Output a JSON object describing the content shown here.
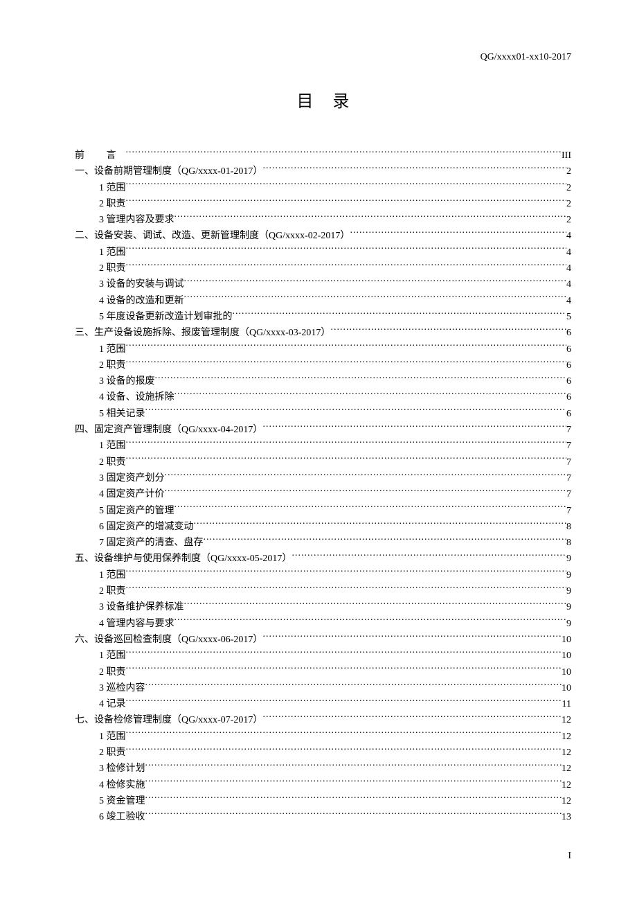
{
  "header_code": "QG/xxxx01-xx10-2017",
  "title": "目录",
  "page_number": "I",
  "toc": [
    {
      "level": 0,
      "label": "前  言",
      "page": "III",
      "preface": true
    },
    {
      "level": 1,
      "label": "一、设备前期管理制度（QG/xxxx-01-2017）",
      "page": "2"
    },
    {
      "level": 2,
      "label": "1 范围",
      "page": "2"
    },
    {
      "level": 2,
      "label": "2 职责",
      "page": "2"
    },
    {
      "level": 2,
      "label": "3 管理内容及要求",
      "page": "2"
    },
    {
      "level": 1,
      "label": "二、设备安装、调试、改造、更新管理制度（QG/xxxx-02-2017）",
      "page": "4"
    },
    {
      "level": 2,
      "label": "1 范围",
      "page": "4"
    },
    {
      "level": 2,
      "label": "2 职责",
      "page": "4"
    },
    {
      "level": 2,
      "label": "3 设备的安装与调试",
      "page": "4"
    },
    {
      "level": 2,
      "label": "4 设备的改造和更新",
      "page": "4"
    },
    {
      "level": 2,
      "label": "5 年度设备更新改造计划审批的",
      "page": "5"
    },
    {
      "level": 1,
      "label": "三、生产设备设施拆除、报废管理制度（QG/xxxx-03-2017）",
      "page": "6"
    },
    {
      "level": 2,
      "label": "1 范围",
      "page": "6"
    },
    {
      "level": 2,
      "label": "2 职责",
      "page": "6"
    },
    {
      "level": 2,
      "label": "3 设备的报废",
      "page": "6"
    },
    {
      "level": 2,
      "label": "4 设备、设施拆除",
      "page": "6"
    },
    {
      "level": 2,
      "label": "5 相关记录",
      "page": "6"
    },
    {
      "level": 1,
      "label": "四、固定资产管理制度（QG/xxxx-04-2017）",
      "page": "7"
    },
    {
      "level": 2,
      "label": "1 范围",
      "page": "7"
    },
    {
      "level": 2,
      "label": "2 职责",
      "page": "7"
    },
    {
      "level": 2,
      "label": "3 固定资产划分",
      "page": "7"
    },
    {
      "level": 2,
      "label": "4 固定资产计价",
      "page": "7"
    },
    {
      "level": 2,
      "label": "5 固定资产的管理",
      "page": "7"
    },
    {
      "level": 2,
      "label": "6 固定资产的增减变动",
      "page": "8"
    },
    {
      "level": 2,
      "label": "7 固定资产的清查、盘存",
      "page": "8"
    },
    {
      "level": 1,
      "label": "五、设备维护与使用保养制度（QG/xxxx-05-2017）",
      "page": "9"
    },
    {
      "level": 2,
      "label": "1 范围",
      "page": "9"
    },
    {
      "level": 2,
      "label": "2 职责",
      "page": "9"
    },
    {
      "level": 2,
      "label": "3 设备维护保养标准",
      "page": "9"
    },
    {
      "level": 2,
      "label": "4 管理内容与要求",
      "page": "9"
    },
    {
      "level": 1,
      "label": "六、设备巡回检查制度（QG/xxxx-06-2017）",
      "page": "10"
    },
    {
      "level": 2,
      "label": "1 范围",
      "page": "10"
    },
    {
      "level": 2,
      "label": "2 职责",
      "page": "10"
    },
    {
      "level": 2,
      "label": "3 巡检内容",
      "page": "10"
    },
    {
      "level": 2,
      "label": "4 记录",
      "page": "11"
    },
    {
      "level": 1,
      "label": "七、设备检修管理制度（QG/xxxx-07-2017）",
      "page": "12"
    },
    {
      "level": 2,
      "label": "1 范围",
      "page": "12"
    },
    {
      "level": 2,
      "label": "2 职责",
      "page": "12"
    },
    {
      "level": 2,
      "label": "3 检修计划",
      "page": "12"
    },
    {
      "level": 2,
      "label": "4 检修实施",
      "page": "12"
    },
    {
      "level": 2,
      "label": "5 资金管理",
      "page": "12"
    },
    {
      "level": 2,
      "label": "6 竣工验收",
      "page": "13"
    }
  ]
}
